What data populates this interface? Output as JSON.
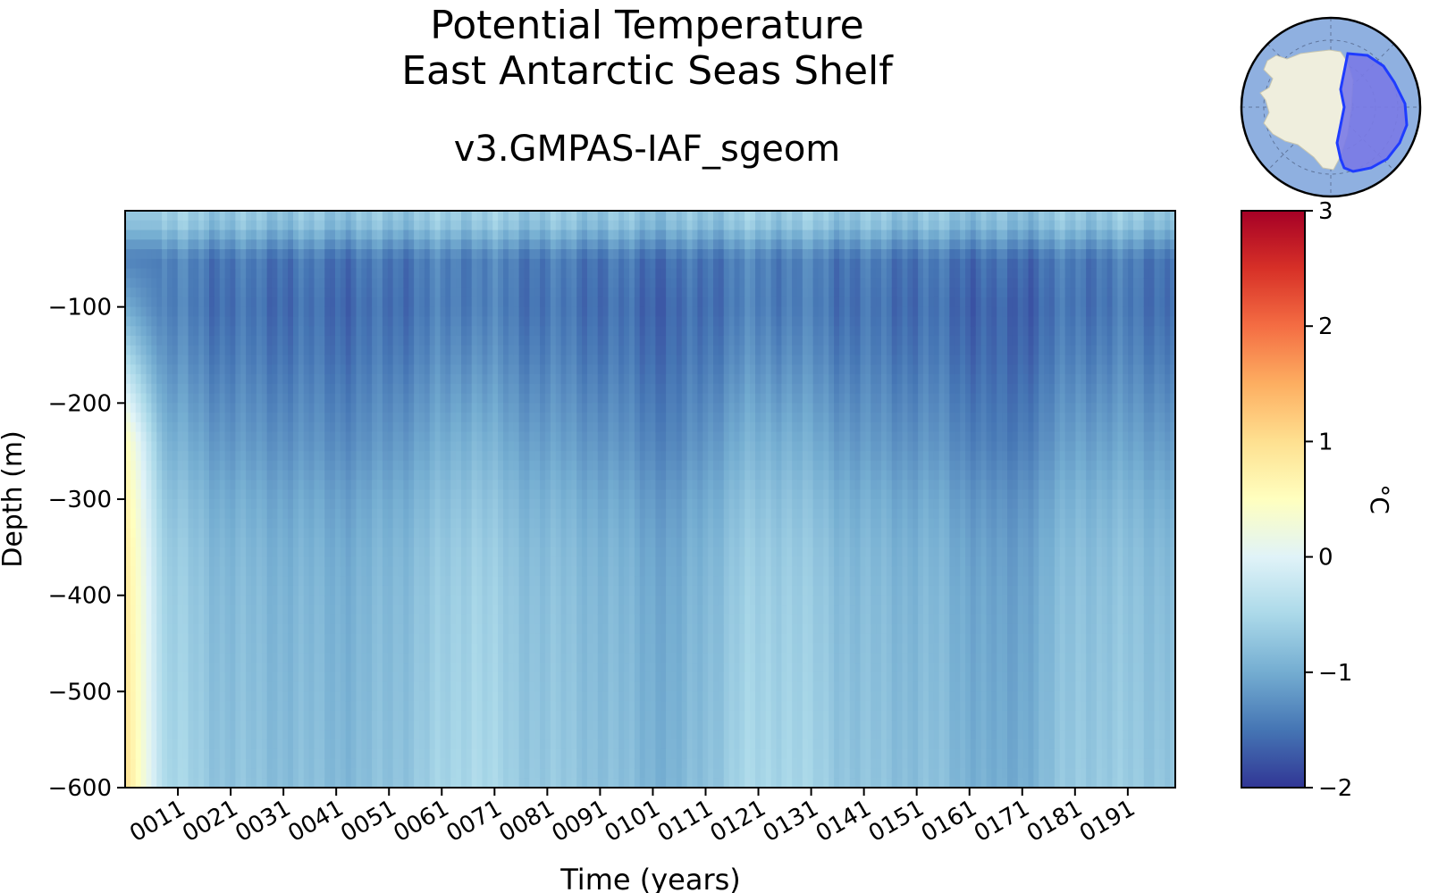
{
  "chart_data": {
    "type": "heatmap",
    "title": "Potential Temperature",
    "subtitle": "East Antarctic Seas Shelf",
    "run_name": "v3.GMPAS-IAF_sgeom",
    "xlabel": "Time (years)",
    "ylabel": "Depth (m)",
    "x_tick_labels": [
      "0011",
      "0021",
      "0031",
      "0041",
      "0051",
      "0061",
      "0071",
      "0081",
      "0091",
      "0101",
      "0111",
      "0121",
      "0131",
      "0141",
      "0151",
      "0161",
      "0171",
      "0181",
      "0191"
    ],
    "x_ticks": [
      11,
      21,
      31,
      41,
      51,
      61,
      71,
      81,
      91,
      101,
      111,
      121,
      131,
      141,
      151,
      161,
      171,
      181,
      191
    ],
    "xlim": [
      1,
      200
    ],
    "ylim": [
      -600,
      0
    ],
    "y_ticks": [
      -100,
      -200,
      -300,
      -400,
      -500,
      -600
    ],
    "colorbar": {
      "label": "°C",
      "min": -2,
      "max": 3,
      "ticks": [
        3,
        2,
        1,
        0,
        -1,
        -2
      ],
      "colormap": "RdYlBu_r",
      "colors": [
        "#313695",
        "#4575b4",
        "#74add1",
        "#abd9e9",
        "#e0f3f8",
        "#ffffbf",
        "#fee090",
        "#fdae61",
        "#f46d43",
        "#d73027",
        "#a50026"
      ]
    },
    "depth_profile": [
      {
        "depth": -10,
        "value": -0.7
      },
      {
        "depth": -50,
        "value": -1.45
      },
      {
        "depth": -100,
        "value": -1.5
      },
      {
        "depth": -150,
        "value": -1.4
      },
      {
        "depth": -200,
        "value": -1.25
      },
      {
        "depth": -250,
        "value": -1.1
      },
      {
        "depth": -300,
        "value": -0.95
      },
      {
        "depth": -350,
        "value": -0.85
      },
      {
        "depth": -400,
        "value": -0.8
      },
      {
        "depth": -500,
        "value": -0.75
      },
      {
        "depth": -600,
        "value": -0.7
      }
    ],
    "time_anomalies": [
      {
        "year": 1,
        "value": 1.2
      },
      {
        "year": 5,
        "value": 0.3
      },
      {
        "year": 20,
        "value": -0.05
      },
      {
        "year": 45,
        "value": -0.15
      },
      {
        "year": 58,
        "value": 0.05
      },
      {
        "year": 67,
        "value": 0.25
      },
      {
        "year": 75,
        "value": 0.05
      },
      {
        "year": 90,
        "value": -0.05
      },
      {
        "year": 105,
        "value": -0.25
      },
      {
        "year": 118,
        "value": 0.15
      },
      {
        "year": 126,
        "value": 0.2
      },
      {
        "year": 140,
        "value": -0.05
      },
      {
        "year": 155,
        "value": -0.1
      },
      {
        "year": 168,
        "value": -0.35
      },
      {
        "year": 182,
        "value": 0.05
      },
      {
        "year": 200,
        "value": 0.0
      }
    ]
  },
  "inset_map": {
    "region": "East Antarctic Seas Shelf",
    "ocean_color": "#8fb0e0",
    "land_color": "#efeedd",
    "region_color": "#7a7ae6",
    "region_edge_color": "#1f3cff"
  }
}
